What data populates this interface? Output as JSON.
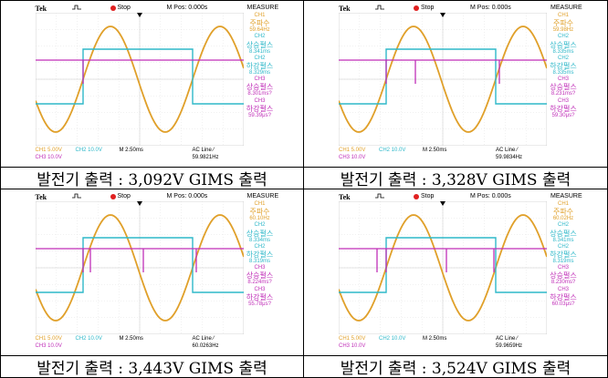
{
  "scope_common": {
    "brand": "Tek",
    "stop": "Stop",
    "mpos": "M Pos: 0.000s",
    "measure": "MEASURE",
    "ch1_label": "CH1",
    "freq_label": "주파수",
    "ch2_label": "CH2",
    "rise_label": "상승펄스",
    "fall_label": "하강펄스",
    "ch3_label": "CH3",
    "f_ch1": "CH1 5.00V",
    "f_ch2": "CH2 10.0V",
    "f_m": "M 2.50ms",
    "f_ch3": "CH3 10.0V",
    "f_acline": "AC Line ⁄",
    "colors": {
      "ch1": "#e0a02a",
      "ch2": "#2fb8c9",
      "ch3": "#c02fb8"
    }
  },
  "panels": [
    {
      "caption": "발전기 출력 : 3,092V GIMS 출력",
      "freq": "59.64Hz",
      "ch2_rise": "8.341ms",
      "ch2_fall": "8.329ms",
      "ch3_rise": "8.301ms?",
      "ch3_fall": "59.39μs?",
      "ac_freq": "59.9821Hz"
    },
    {
      "caption": "발전기 출력 : 3,328V GIMS 출력",
      "freq": "59.98Hz",
      "ch2_rise": "8.335ms",
      "ch2_fall": "8.335ms",
      "ch3_rise": "8.231ms?",
      "ch3_fall": "59.30μs?",
      "ac_freq": "59.9834Hz"
    },
    {
      "caption": "발전기 출력 : 3,443V GIMS 출력",
      "freq": "60.10Hz",
      "ch2_rise": "8.334ms",
      "ch2_fall": "8.319ms",
      "ch3_rise": "8.224ms?",
      "ch3_fall": "55.78μs?",
      "ac_freq": "60.0263Hz"
    },
    {
      "caption": "발전기 출력 : 3,524V GIMS 출력",
      "freq": "60.02Hz",
      "ch2_rise": "8.341ms",
      "ch2_fall": "8.319ms",
      "ch3_rise": "8.230ms?",
      "ch3_fall": "60.03μs?",
      "ac_freq": "59.9659Hz"
    }
  ]
}
